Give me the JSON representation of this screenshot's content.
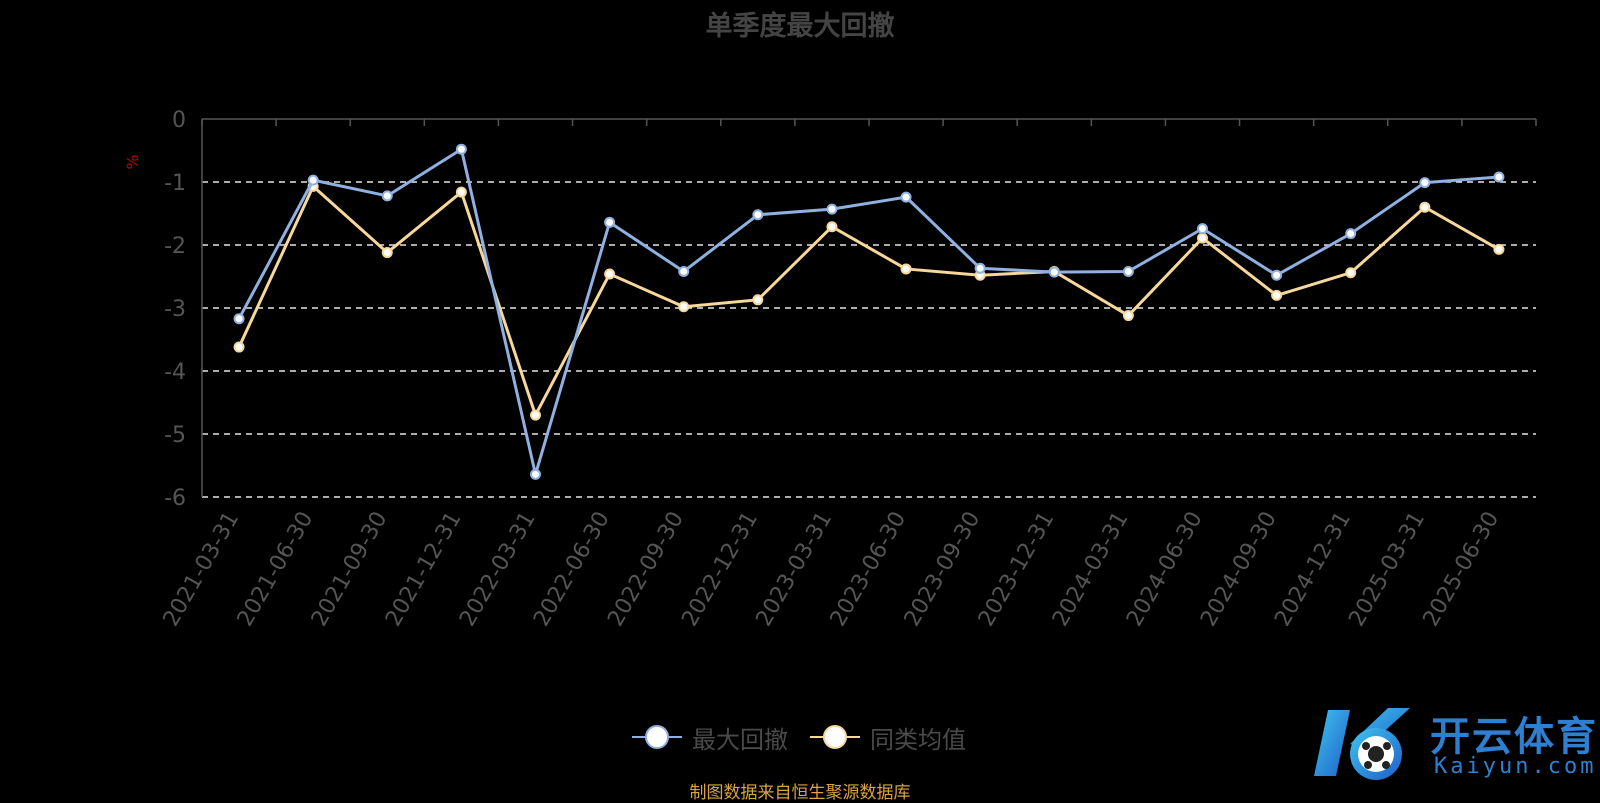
{
  "chart_data": {
    "type": "line",
    "title": "单季度最大回撤",
    "ylabel": "%",
    "ylim": [
      -6,
      0
    ],
    "yticks": [
      0,
      -1,
      -2,
      -3,
      -4,
      -5,
      -6
    ],
    "grid": true,
    "legend_position": "bottom-center",
    "categories": [
      "2021-03-31",
      "2021-06-30",
      "2021-09-30",
      "2021-12-31",
      "2022-03-31",
      "2022-06-30",
      "2022-09-30",
      "2022-12-31",
      "2023-03-31",
      "2023-06-30",
      "2023-09-30",
      "2023-12-31",
      "2024-03-31",
      "2024-06-30",
      "2024-09-30",
      "2024-12-31",
      "2025-03-31",
      "2025-06-30"
    ],
    "series": [
      {
        "name": "最大回撤",
        "color": "#8fb0e0",
        "values": [
          -3.17,
          -0.97,
          -1.22,
          -0.48,
          -5.64,
          -1.64,
          -2.42,
          -1.52,
          -1.43,
          -1.24,
          -2.37,
          -2.43,
          -2.42,
          -1.74,
          -2.48,
          -1.82,
          -1.01,
          -0.92
        ]
      },
      {
        "name": "同类均值",
        "color": "#f7d79a",
        "values": [
          -3.62,
          -1.07,
          -2.12,
          -1.16,
          -4.7,
          -2.46,
          -2.98,
          -2.87,
          -1.71,
          -2.38,
          -2.48,
          -2.42,
          -3.12,
          -1.89,
          -2.8,
          -2.44,
          -1.4,
          -2.07
        ]
      }
    ]
  },
  "source_note": "制图数据来自恒生聚源数据库",
  "brand": {
    "name_cn": "开云体育",
    "name_en": "Kaiyun.com"
  }
}
